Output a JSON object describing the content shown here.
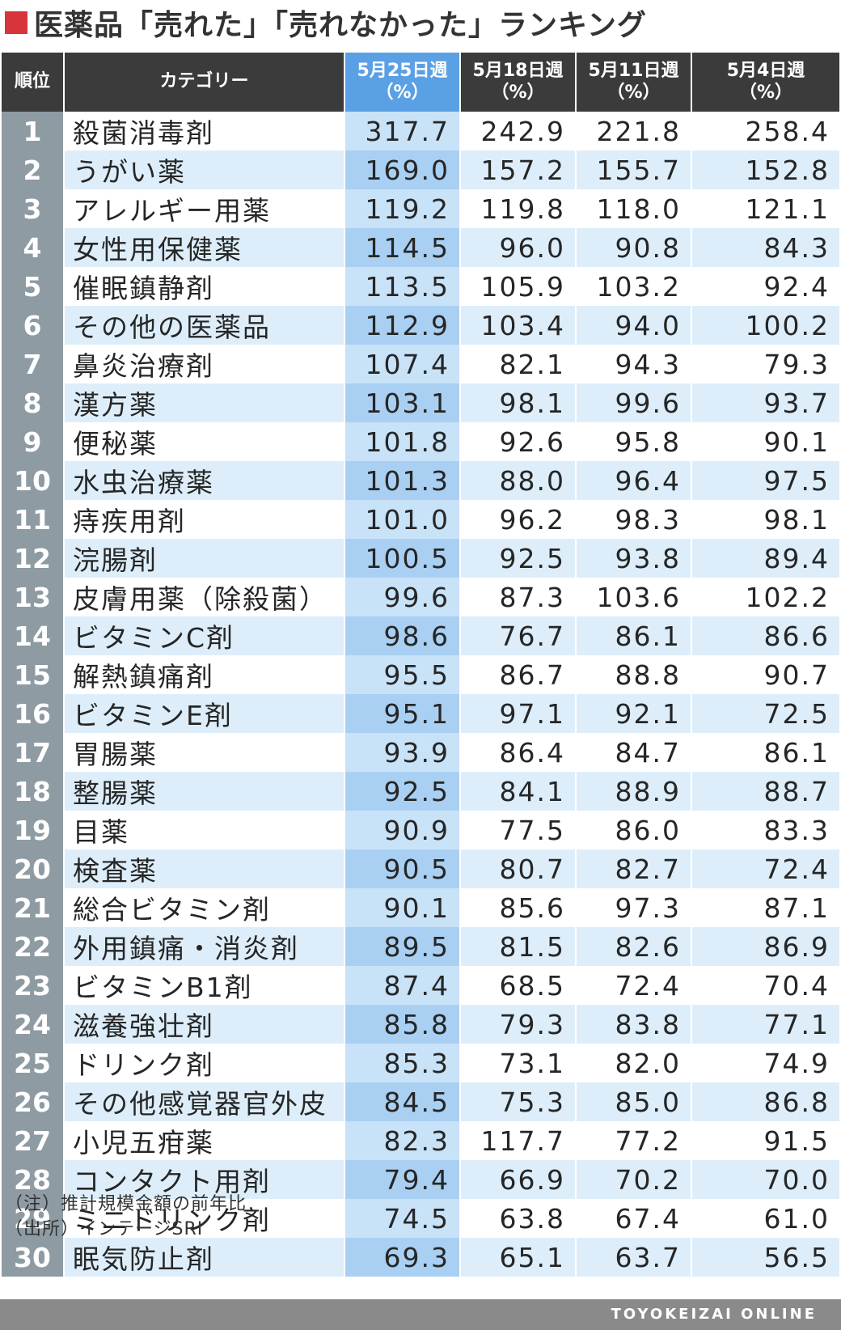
{
  "title": "医薬品「売れた」「売れなかった」ランキング",
  "accent_color": "#d7343b",
  "current_column_color": "#5aa0e4",
  "header": {
    "rank": "順位",
    "category": "カテゴリー",
    "weeks": [
      {
        "label": "5月25日週",
        "unit": "（%）"
      },
      {
        "label": "5月18日週",
        "unit": "（%）"
      },
      {
        "label": "5月11日週",
        "unit": "（%）"
      },
      {
        "label": "5月4日週",
        "unit": "（%）"
      }
    ]
  },
  "rows": [
    {
      "rank": "1",
      "category": "殺菌消毒剤",
      "values": [
        "317.7",
        "242.9",
        "221.8",
        "258.4"
      ]
    },
    {
      "rank": "2",
      "category": "うがい薬",
      "values": [
        "169.0",
        "157.2",
        "155.7",
        "152.8"
      ]
    },
    {
      "rank": "3",
      "category": "アレルギー用薬",
      "values": [
        "119.2",
        "119.8",
        "118.0",
        "121.1"
      ]
    },
    {
      "rank": "4",
      "category": "女性用保健薬",
      "values": [
        "114.5",
        "96.0",
        "90.8",
        "84.3"
      ]
    },
    {
      "rank": "5",
      "category": "催眠鎮静剤",
      "values": [
        "113.5",
        "105.9",
        "103.2",
        "92.4"
      ]
    },
    {
      "rank": "6",
      "category": "その他の医薬品",
      "values": [
        "112.9",
        "103.4",
        "94.0",
        "100.2"
      ]
    },
    {
      "rank": "7",
      "category": "鼻炎治療剤",
      "values": [
        "107.4",
        "82.1",
        "94.3",
        "79.3"
      ]
    },
    {
      "rank": "8",
      "category": "漢方薬",
      "values": [
        "103.1",
        "98.1",
        "99.6",
        "93.7"
      ]
    },
    {
      "rank": "9",
      "category": "便秘薬",
      "values": [
        "101.8",
        "92.6",
        "95.8",
        "90.1"
      ]
    },
    {
      "rank": "10",
      "category": "水虫治療薬",
      "values": [
        "101.3",
        "88.0",
        "96.4",
        "97.5"
      ]
    },
    {
      "rank": "11",
      "category": "痔疾用剤",
      "values": [
        "101.0",
        "96.2",
        "98.3",
        "98.1"
      ]
    },
    {
      "rank": "12",
      "category": "浣腸剤",
      "values": [
        "100.5",
        "92.5",
        "93.8",
        "89.4"
      ]
    },
    {
      "rank": "13",
      "category": "皮膚用薬（除殺菌）",
      "values": [
        "99.6",
        "87.3",
        "103.6",
        "102.2"
      ]
    },
    {
      "rank": "14",
      "category": "ビタミンC剤",
      "values": [
        "98.6",
        "76.7",
        "86.1",
        "86.6"
      ]
    },
    {
      "rank": "15",
      "category": "解熱鎮痛剤",
      "values": [
        "95.5",
        "86.7",
        "88.8",
        "90.7"
      ]
    },
    {
      "rank": "16",
      "category": "ビタミンE剤",
      "values": [
        "95.1",
        "97.1",
        "92.1",
        "72.5"
      ]
    },
    {
      "rank": "17",
      "category": "胃腸薬",
      "values": [
        "93.9",
        "86.4",
        "84.7",
        "86.1"
      ]
    },
    {
      "rank": "18",
      "category": "整腸薬",
      "values": [
        "92.5",
        "84.1",
        "88.9",
        "88.7"
      ]
    },
    {
      "rank": "19",
      "category": "目薬",
      "values": [
        "90.9",
        "77.5",
        "86.0",
        "83.3"
      ]
    },
    {
      "rank": "20",
      "category": "検査薬",
      "values": [
        "90.5",
        "80.7",
        "82.7",
        "72.4"
      ]
    },
    {
      "rank": "21",
      "category": "総合ビタミン剤",
      "values": [
        "90.1",
        "85.6",
        "97.3",
        "87.1"
      ]
    },
    {
      "rank": "22",
      "category": "外用鎮痛・消炎剤",
      "values": [
        "89.5",
        "81.5",
        "82.6",
        "86.9"
      ]
    },
    {
      "rank": "23",
      "category": "ビタミンB1剤",
      "values": [
        "87.4",
        "68.5",
        "72.4",
        "70.4"
      ]
    },
    {
      "rank": "24",
      "category": "滋養強壮剤",
      "values": [
        "85.8",
        "79.3",
        "83.8",
        "77.1"
      ]
    },
    {
      "rank": "25",
      "category": "ドリンク剤",
      "values": [
        "85.3",
        "73.1",
        "82.0",
        "74.9"
      ]
    },
    {
      "rank": "26",
      "category": "その他感覚器官外皮",
      "values": [
        "84.5",
        "75.3",
        "85.0",
        "86.8"
      ]
    },
    {
      "rank": "27",
      "category": "小児五疳薬",
      "values": [
        "82.3",
        "117.7",
        "77.2",
        "91.5"
      ]
    },
    {
      "rank": "28",
      "category": "コンタクト用剤",
      "values": [
        "79.4",
        "66.9",
        "70.2",
        "70.0"
      ]
    },
    {
      "rank": "29",
      "category": "ミニドリンク剤",
      "values": [
        "74.5",
        "63.8",
        "67.4",
        "61.0"
      ]
    },
    {
      "rank": "30",
      "category": "眠気防止剤",
      "values": [
        "69.3",
        "65.1",
        "63.7",
        "56.5"
      ]
    }
  ],
  "notes": {
    "note": "（注）推計規模金額の前年比",
    "source": "（出所）インテージSRI"
  },
  "footer": {
    "brand": "TOYOKEIZAI ONLINE"
  }
}
